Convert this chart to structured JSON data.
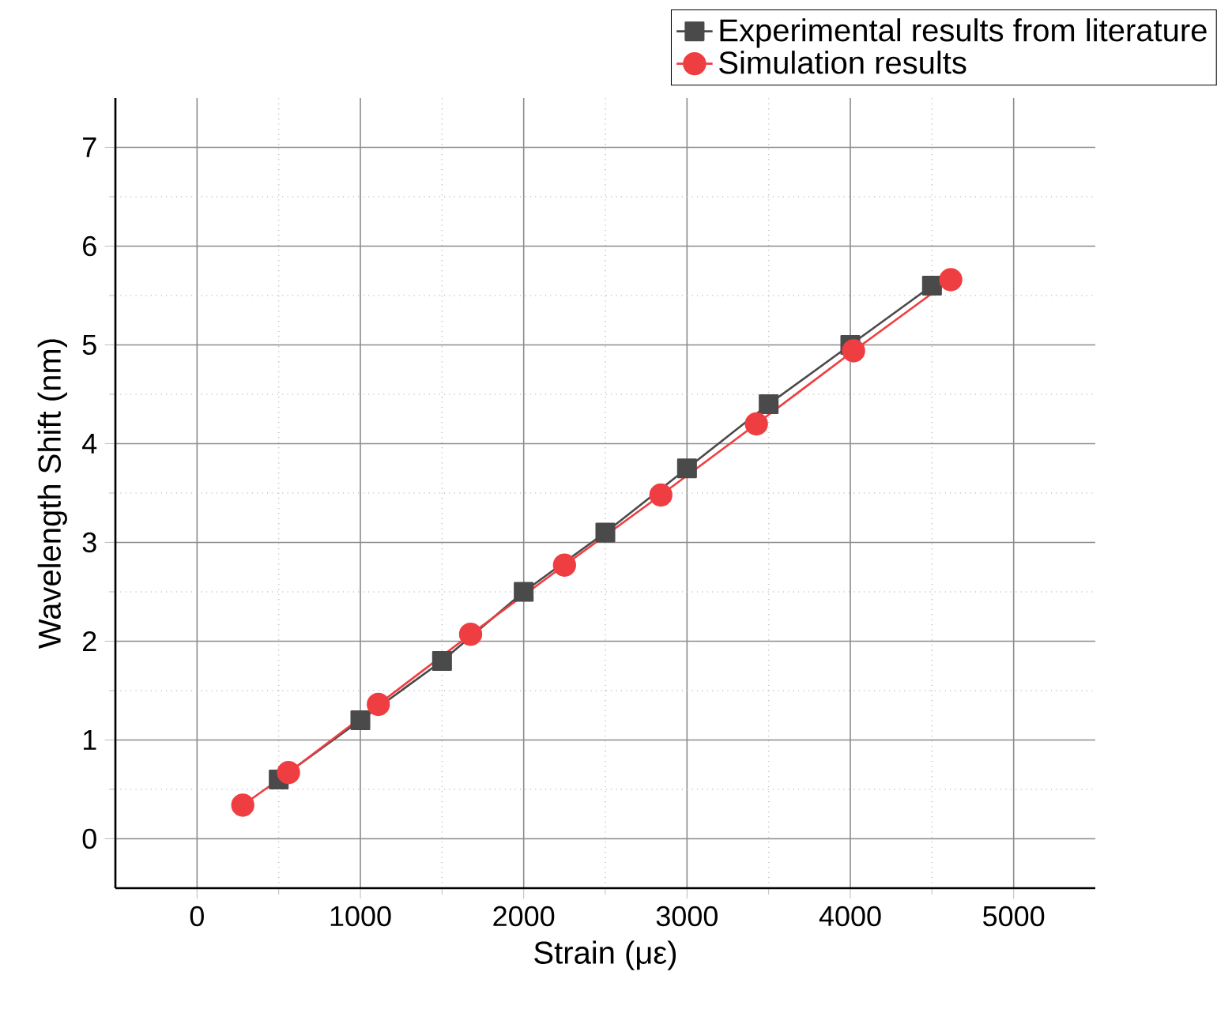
{
  "chart_data": {
    "type": "line",
    "xlabel": "Strain (με)",
    "ylabel": "Wavelength Shift (nm)",
    "xlim": [
      -500,
      5500
    ],
    "ylim": [
      -0.5,
      7.5
    ],
    "xticks": [
      0,
      1000,
      2000,
      3000,
      4000,
      5000
    ],
    "yticks": [
      0,
      1,
      2,
      3,
      4,
      5,
      6,
      7
    ],
    "grid": true,
    "legend": "top right",
    "line_style": "solid",
    "series": [
      {
        "name": "Experimental results from literature",
        "color": "#4a4a4a",
        "marker": "square",
        "x": [
          500,
          1000,
          1500,
          2000,
          2500,
          3000,
          3500,
          4000,
          4500
        ],
        "values": [
          0.6,
          1.2,
          1.8,
          2.5,
          3.1,
          3.75,
          4.4,
          5.0,
          5.6
        ]
      },
      {
        "name": "Simulation results",
        "color": "#ef3e42",
        "marker": "circle",
        "x": [
          280,
          560,
          1110,
          1675,
          2250,
          2840,
          3425,
          4020,
          4615
        ],
        "values": [
          0.34,
          0.67,
          1.36,
          2.07,
          2.77,
          3.48,
          4.2,
          4.94,
          5.66
        ]
      }
    ]
  }
}
